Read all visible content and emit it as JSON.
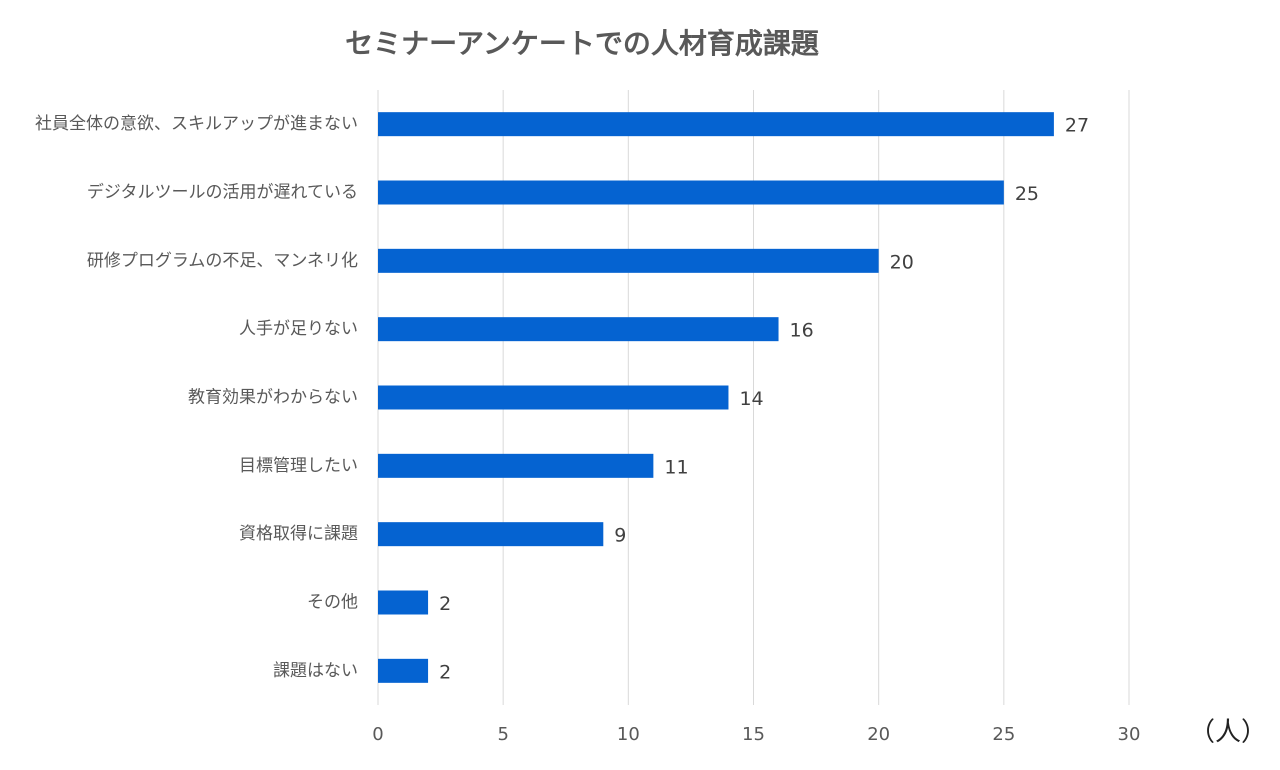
{
  "chart_data": {
    "type": "bar",
    "orientation": "horizontal",
    "title": "セミナーアンケートでの人材育成課題",
    "x_label": "（人）",
    "categories": [
      "社員全体の意欲、スキルアップが進まない",
      "デジタルツールの活用が遅れている",
      "研修プログラムの不足、マンネリ化",
      "人手が足りない",
      "教育効果がわからない",
      "目標管理したい",
      "資格取得に課題",
      "その他",
      "課題はない"
    ],
    "values": [
      27,
      25,
      20,
      16,
      14,
      11,
      9,
      2,
      2
    ],
    "color": "#0563d1",
    "xlim": [
      0,
      30
    ],
    "xticks": [
      0,
      5,
      10,
      15,
      20,
      25,
      30
    ],
    "grid": true
  }
}
